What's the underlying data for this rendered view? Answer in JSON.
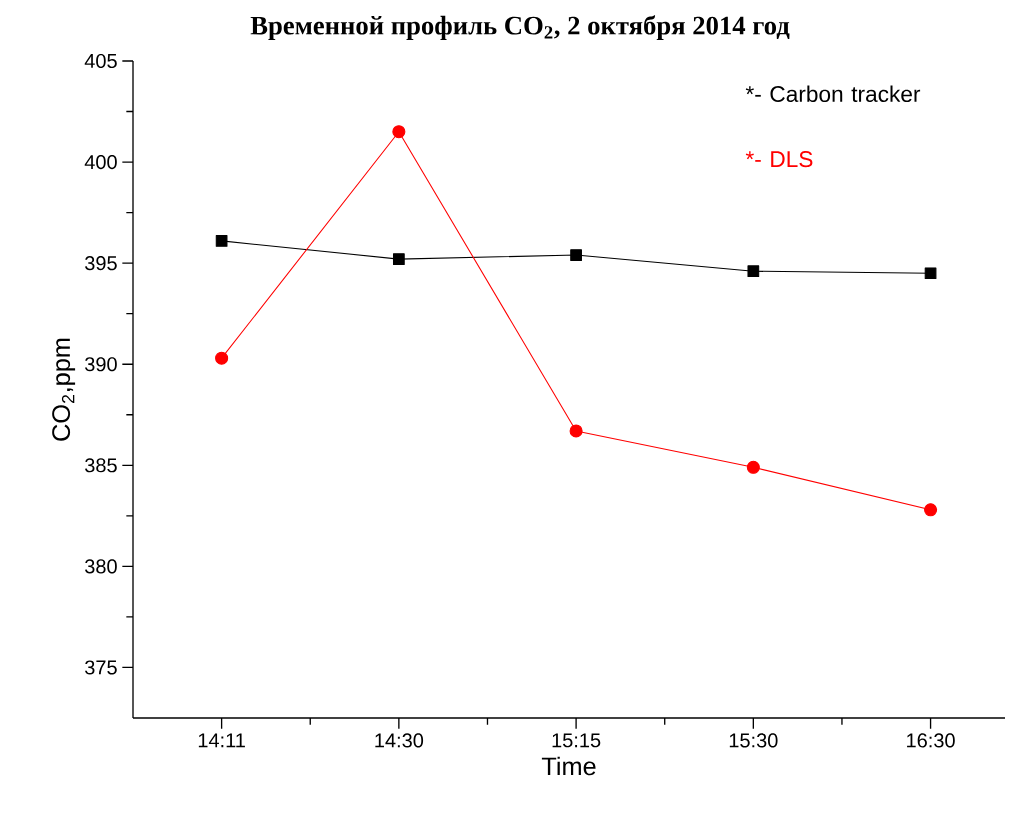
{
  "chart_data": {
    "type": "line",
    "title": "Временной профиль CO$_{2}$, 2 октября 2014 год",
    "xlabel": "Time",
    "ylabel": "CO$_{2}$,ppm",
    "categories": [
      "14:11",
      "14:30",
      "15:15",
      "15:30",
      "16:30"
    ],
    "series": [
      {
        "name": "*- Carbon tracker",
        "color": "#000000",
        "marker": "square",
        "values": [
          396.1,
          395.2,
          395.4,
          394.6,
          394.5
        ]
      },
      {
        "name": "*- DLS",
        "color": "#ff0000",
        "marker": "circle",
        "values": [
          390.3,
          401.5,
          386.7,
          384.9,
          382.8
        ]
      }
    ],
    "ylim": [
      372.5,
      405
    ],
    "yticks": [
      375,
      380,
      385,
      390,
      395,
      400,
      405
    ],
    "grid": false,
    "legend": "top right",
    "line_style": "solid"
  }
}
